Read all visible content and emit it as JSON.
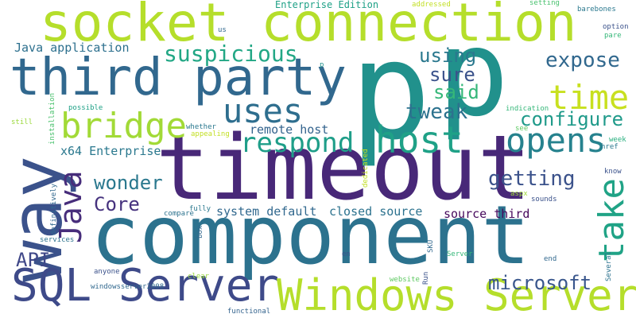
{
  "words": [
    {
      "text": "timeout",
      "color": "#482878"
    },
    {
      "text": "component",
      "color": "#2c728e"
    },
    {
      "text": "p",
      "color": "#21918c"
    },
    {
      "text": "p",
      "color": "#21918c"
    },
    {
      "text": "way",
      "color": "#3b528b"
    },
    {
      "text": "socket connection",
      "color": "#b5de2b"
    },
    {
      "text": "third party",
      "color": "#31688e"
    },
    {
      "text": "SQL Server",
      "color": "#3e4a89"
    },
    {
      "text": "Windows Server",
      "color": "#b5de2b"
    },
    {
      "text": "bridge",
      "color": "#a2da37"
    },
    {
      "text": "host",
      "color": "#1fa187"
    },
    {
      "text": "opens",
      "color": "#26828e"
    },
    {
      "text": "uses",
      "color": "#2e6e8e"
    },
    {
      "text": "time",
      "color": "#c8e020"
    },
    {
      "text": "take",
      "color": "#20a386"
    },
    {
      "text": "respond",
      "color": "#1f9e89"
    },
    {
      "text": "Java",
      "color": "#472d7b"
    },
    {
      "text": "suspicious",
      "color": "#22a785"
    },
    {
      "text": "expose",
      "color": "#31688e"
    },
    {
      "text": "using",
      "color": "#2a788e"
    },
    {
      "text": "sure",
      "color": "#3b528b"
    },
    {
      "text": "said",
      "color": "#35b779"
    },
    {
      "text": "tweak",
      "color": "#2c728e"
    },
    {
      "text": "configure",
      "color": "#1f9a8a"
    },
    {
      "text": "getting",
      "color": "#3b528b"
    },
    {
      "text": "wonder",
      "color": "#2a788e"
    },
    {
      "text": "Core",
      "color": "#46327e"
    },
    {
      "text": "microsoft",
      "color": "#39568c"
    },
    {
      "text": "API",
      "color": "#3f4788"
    },
    {
      "text": "Java application",
      "color": "#2d708e"
    },
    {
      "text": "x64 Enterprise",
      "color": "#2a788e"
    },
    {
      "text": "remote host",
      "color": "#33638d"
    },
    {
      "text": "system default",
      "color": "#31688e"
    },
    {
      "text": "closed source",
      "color": "#2c728e"
    },
    {
      "text": "source third",
      "color": "#46085c"
    },
    {
      "text": "Enterprise Edition",
      "color": "#1fa187"
    },
    {
      "text": "addressed",
      "color": "#c2df23"
    },
    {
      "text": "setting",
      "color": "#48c16e"
    },
    {
      "text": "barebones",
      "color": "#2a788e"
    },
    {
      "text": "option",
      "color": "#3b528b"
    },
    {
      "text": "pare",
      "color": "#35b779"
    },
    {
      "text": "us",
      "color": "#31688e"
    },
    {
      "text": "p",
      "color": "#21918c"
    },
    {
      "text": "possible",
      "color": "#1fa187"
    },
    {
      "text": "still",
      "color": "#9bd93c"
    },
    {
      "text": "installation",
      "color": "#4ac16d"
    },
    {
      "text": "whether",
      "color": "#2a788e"
    },
    {
      "text": "appealing",
      "color": "#c2df23"
    },
    {
      "text": "indication",
      "color": "#35b779"
    },
    {
      "text": "see",
      "color": "#5ec962"
    },
    {
      "text": "week",
      "color": "#29af7f"
    },
    {
      "text": "href",
      "color": "#2a788e"
    },
    {
      "text": "know",
      "color": "#3b528b"
    },
    {
      "text": "definitively",
      "color": "#31688e"
    },
    {
      "text": "dedicated",
      "color": "#c2df23"
    },
    {
      "text": "aspx",
      "color": "#a0da39"
    },
    {
      "text": "sounds",
      "color": "#3b528b"
    },
    {
      "text": "compare",
      "color": "#2c728e"
    },
    {
      "text": "fully",
      "color": "#2a788e"
    },
    {
      "text": "box",
      "color": "#31688e"
    },
    {
      "text": "services",
      "color": "#2c728e"
    },
    {
      "text": "SKU",
      "color": "#31688e"
    },
    {
      "text": "en",
      "color": "#3b528b"
    },
    {
      "text": "Server",
      "color": "#35b779"
    },
    {
      "text": "end",
      "color": "#31688e"
    },
    {
      "text": "Several",
      "color": "#2c728e"
    },
    {
      "text": "anyone",
      "color": "#3b528b"
    },
    {
      "text": "clear",
      "color": "#9bd93c"
    },
    {
      "text": "Run",
      "color": "#3b528b"
    },
    {
      "text": "website",
      "color": "#5ec962"
    },
    {
      "text": "windowsserver2008",
      "color": "#31688e"
    },
    {
      "text": "functional",
      "color": "#33638d"
    }
  ]
}
